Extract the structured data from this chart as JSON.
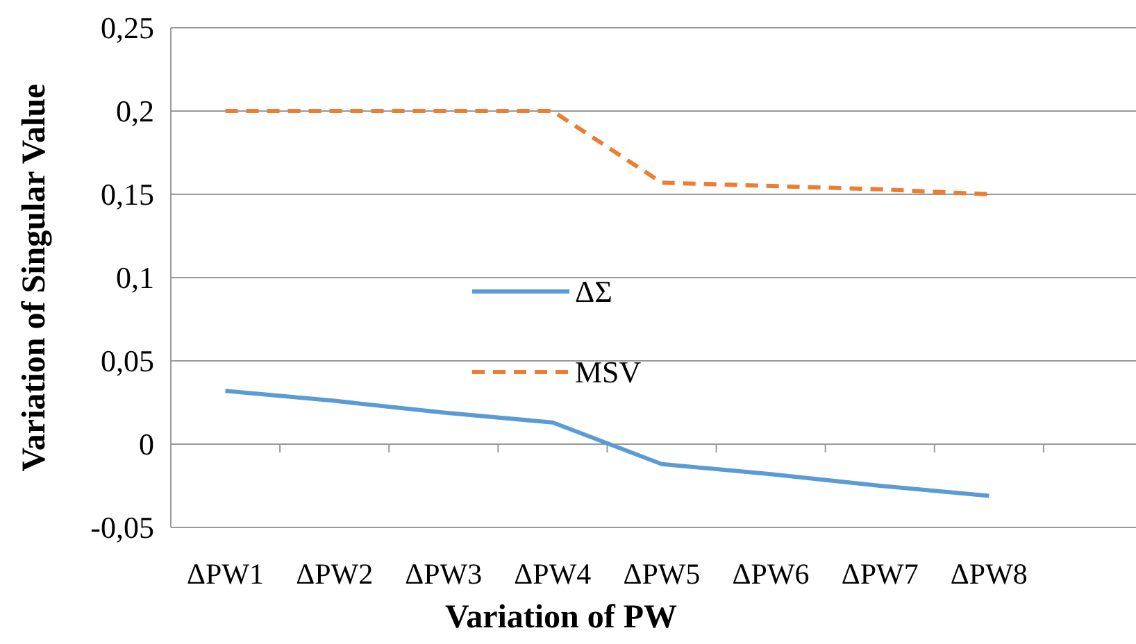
{
  "chart_data": {
    "type": "line",
    "xlabel": "Variation of PW",
    "ylabel": "Variation of Singular Value",
    "categories": [
      "ΔPW1",
      "ΔPW2",
      "ΔPW3",
      "ΔPW4",
      "ΔPW5",
      "ΔPW6",
      "ΔPW7",
      "ΔPW8",
      null
    ],
    "series": [
      {
        "name": "ΔΣ",
        "color": "#5b9bd5",
        "line_style": "solid",
        "values": [
          0.032,
          0.026,
          0.019,
          0.013,
          -0.012,
          -0.018,
          -0.025,
          -0.031,
          null
        ]
      },
      {
        "name": "MSV",
        "color": "#ed7d31",
        "line_style": "dashed",
        "values": [
          0.2,
          0.2,
          0.2,
          0.2,
          0.157,
          0.155,
          0.153,
          0.15,
          null
        ]
      }
    ],
    "ylim": [
      -0.05,
      0.25
    ],
    "yticks": [
      {
        "value": -0.05,
        "label": "-0,05"
      },
      {
        "value": 0,
        "label": "0"
      },
      {
        "value": 0.05,
        "label": "0,05"
      },
      {
        "value": 0.1,
        "label": "0,1"
      },
      {
        "value": 0.15,
        "label": "0,15"
      },
      {
        "value": 0.2,
        "label": "0,2"
      },
      {
        "value": 0.25,
        "label": "0,25"
      }
    ],
    "grid": "y",
    "legend": "center",
    "marker": "none"
  }
}
